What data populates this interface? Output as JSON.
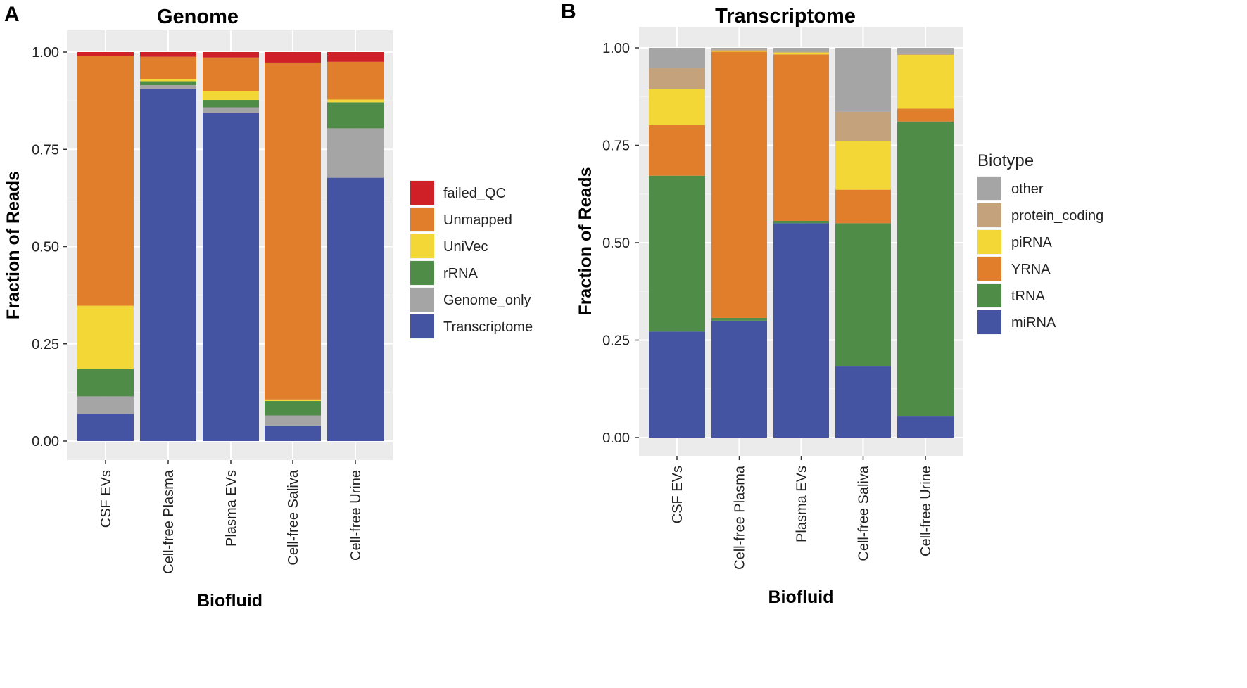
{
  "chart_data": [
    {
      "panel": "A",
      "type": "bar",
      "stacked": true,
      "title": "Genome",
      "xlabel": "Biofluid",
      "ylabel": "Fraction of Reads",
      "ylim": [
        0,
        1
      ],
      "yticks": [
        "0.00",
        "0.25",
        "0.50",
        "0.75",
        "1.00"
      ],
      "categories": [
        "CSF EVs",
        "Cell-free Plasma",
        "Plasma EVs",
        "Cell-free Saliva",
        "Cell-free Urine"
      ],
      "legend_title": "",
      "series": [
        {
          "name": "Transcriptome",
          "color": "#4453a2",
          "values": [
            0.07,
            0.905,
            0.843,
            0.04,
            0.677
          ]
        },
        {
          "name": "Genome_only",
          "color": "#a5a5a5",
          "values": [
            0.045,
            0.01,
            0.015,
            0.026,
            0.127
          ]
        },
        {
          "name": "rRNA",
          "color": "#4e8c48",
          "values": [
            0.07,
            0.01,
            0.019,
            0.037,
            0.067
          ]
        },
        {
          "name": "UniVec",
          "color": "#f2d737",
          "values": [
            0.163,
            0.005,
            0.022,
            0.004,
            0.007
          ]
        },
        {
          "name": "Unmapped",
          "color": "#e07e2c",
          "values": [
            0.642,
            0.058,
            0.087,
            0.866,
            0.097
          ]
        },
        {
          "name": "failed_QC",
          "color": "#cf2027",
          "values": [
            0.01,
            0.012,
            0.014,
            0.027,
            0.025
          ]
        }
      ],
      "legend_order": [
        "failed_QC",
        "Unmapped",
        "UniVec",
        "rRNA",
        "Genome_only",
        "Transcriptome"
      ]
    },
    {
      "panel": "B",
      "type": "bar",
      "stacked": true,
      "title": "Transcriptome",
      "xlabel": "Biofluid",
      "ylabel": "Fraction of Reads",
      "ylim": [
        0,
        1
      ],
      "yticks": [
        "0.00",
        "0.25",
        "0.50",
        "0.75",
        "1.00"
      ],
      "categories": [
        "CSF EVs",
        "Cell-free Plasma",
        "Plasma EVs",
        "Cell-free Saliva",
        "Cell-free Urine"
      ],
      "legend_title": "Biotype",
      "series": [
        {
          "name": "miRNA",
          "color": "#4453a2",
          "values": [
            0.272,
            0.3,
            0.55,
            0.184,
            0.054
          ]
        },
        {
          "name": "tRNA",
          "color": "#4e8c48",
          "values": [
            0.4,
            0.007,
            0.006,
            0.366,
            0.757
          ]
        },
        {
          "name": "YRNA",
          "color": "#e07e2c",
          "values": [
            0.13,
            0.683,
            0.427,
            0.086,
            0.033
          ]
        },
        {
          "name": "piRNA",
          "color": "#f2d737",
          "values": [
            0.092,
            0.003,
            0.005,
            0.125,
            0.138
          ]
        },
        {
          "name": "protein_coding",
          "color": "#c4a27b",
          "values": [
            0.055,
            0.002,
            0.002,
            0.075,
            0.002
          ]
        },
        {
          "name": "other",
          "color": "#a5a5a5",
          "values": [
            0.051,
            0.005,
            0.01,
            0.164,
            0.016
          ]
        }
      ],
      "legend_order": [
        "other",
        "protein_coding",
        "piRNA",
        "YRNA",
        "tRNA",
        "miRNA"
      ]
    }
  ]
}
